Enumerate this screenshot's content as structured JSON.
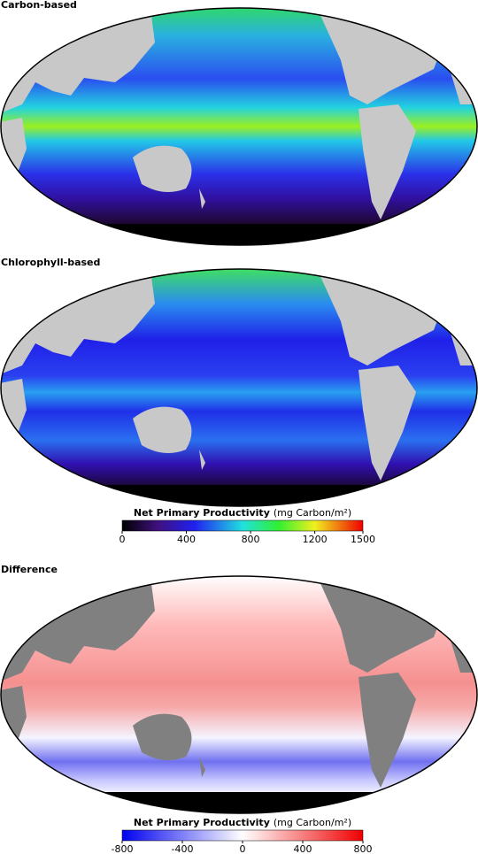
{
  "panels": [
    {
      "title": "Carbon-based"
    },
    {
      "title": "Chlorophyll-based"
    },
    {
      "title": "Difference"
    }
  ],
  "colorbars": [
    {
      "title": "Net Primary Productivity",
      "unit": "(mg Carbon/m²)",
      "lim": [
        0,
        1500
      ],
      "ticks": [
        0,
        400,
        800,
        1200,
        1500
      ]
    },
    {
      "title": "Net Primary Productivity",
      "unit": "(mg Carbon/m²)",
      "lim": [
        -800,
        800
      ],
      "ticks": [
        -800,
        -400,
        0,
        400,
        800
      ]
    }
  ]
}
